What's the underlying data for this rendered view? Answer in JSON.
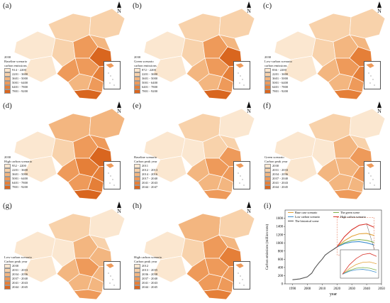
{
  "panels": [
    {
      "id": "a",
      "label": "(a)",
      "legend_title": [
        "2030",
        "Baseline scenario",
        "carbon emissions"
      ],
      "legend": [
        "914 - 2200",
        "2201 - 3600",
        "3601 - 5000",
        "5001 - 6400",
        "6401 - 7800",
        "7801 - 9200"
      ]
    },
    {
      "id": "b",
      "label": "(b)",
      "legend_title": [
        "2030",
        "Green scenario",
        "carbon emissions"
      ],
      "legend": [
        "872 - 2200",
        "2201 - 3600",
        "3601 - 5000",
        "5001 - 6400",
        "6401 - 7800",
        "7801 - 9200"
      ]
    },
    {
      "id": "c",
      "label": "(c)",
      "legend_title": [
        "2030",
        "Low-carbon scenario",
        "carbon emissions"
      ],
      "legend": [
        "836 - 2200",
        "2201 - 3600",
        "3601 - 5000",
        "5001 - 6400",
        "6401 - 7800",
        "7801 - 9200"
      ]
    },
    {
      "id": "d",
      "label": "(d)",
      "legend_title": [
        "2030",
        "High carbon scenario"
      ],
      "legend": [
        "952 - 2200",
        "2201 - 3600",
        "3601 - 5000",
        "5001 - 6400",
        "6401 - 7800",
        "7801 - 9200"
      ]
    },
    {
      "id": "e",
      "label": "(e)",
      "legend_title": [
        "Baseline scenario",
        "Carbon peak year"
      ],
      "legend": [
        "2011",
        "2012 - 2013",
        "2014 - 2016",
        "2017 - 2040",
        "2041 - 2043",
        "2044 - 2047"
      ]
    },
    {
      "id": "f",
      "label": "(f)",
      "legend_title": [
        "Green scenario",
        "Carbon peak year"
      ],
      "legend": [
        "2030",
        "2031 - 2033",
        "2034 - 2036",
        "2037 - 2040",
        "2041 - 2043",
        "2044 - 2045"
      ]
    },
    {
      "id": "g",
      "label": "(g)",
      "legend_title": [
        "Low-carbon scenario",
        "Carbon peak year"
      ],
      "legend": [
        "2030",
        "2031 - 2033",
        "2034 - 2036",
        "2037 - 2040",
        "2041 - 2043",
        "2044 - 2045"
      ]
    },
    {
      "id": "h",
      "label": "(h)",
      "legend_title": [
        "High carbon scenario",
        "Carbon peak year"
      ],
      "legend": [
        "2012",
        "2013 - 2035",
        "2036 - 2038",
        "2037 - 2040",
        "2041 - 2043",
        "2044 - 2045"
      ]
    }
  ],
  "north_label": "N",
  "legend_colors": [
    "#fbe7d0",
    "#f8d2ab",
    "#f3b680",
    "#ee9a5a",
    "#e57f38",
    "#d9661f"
  ],
  "chart_label": "(i)",
  "chart_data": {
    "type": "line",
    "xlabel": "year",
    "ylabel": "Carbon emissions (million tons)",
    "xlim": [
      1985,
      2050
    ],
    "ylim": [
      0,
      1800
    ],
    "xticks": [
      1990,
      2000,
      2010,
      2020,
      2030,
      2040,
      2050
    ],
    "yticks": [
      0,
      200,
      400,
      600,
      800,
      1000,
      1200,
      1400,
      1600
    ],
    "series": [
      {
        "name": "The historical scene",
        "color": "#555555",
        "x": [
          1990,
          1995,
          2000,
          2003,
          2005,
          2008,
          2010,
          2012,
          2015,
          2018,
          2020
        ],
        "y": [
          100,
          120,
          170,
          260,
          380,
          520,
          600,
          700,
          780,
          850,
          900
        ]
      },
      {
        "name": "Base case scenario",
        "color": "#e3a33a",
        "x": [
          2020,
          2025,
          2030,
          2035,
          2040,
          2045
        ],
        "y": [
          900,
          1050,
          1160,
          1220,
          1230,
          1180
        ]
      },
      {
        "name": "The green scene",
        "color": "#7fb24a",
        "x": [
          2020,
          2025,
          2030,
          2035,
          2040,
          2045
        ],
        "y": [
          900,
          1000,
          1060,
          1080,
          1060,
          1010
        ]
      },
      {
        "name": "Low carbon scenario",
        "color": "#3f8fcf",
        "x": [
          2020,
          2025,
          2030,
          2035,
          2040,
          2045
        ],
        "y": [
          900,
          980,
          1020,
          1030,
          1000,
          950
        ]
      },
      {
        "name": "High carbon scenario",
        "color": "#d9342b",
        "x": [
          2020,
          2025,
          2030,
          2035,
          2040,
          2045
        ],
        "y": [
          900,
          1150,
          1320,
          1430,
          1460,
          1380
        ]
      }
    ]
  }
}
